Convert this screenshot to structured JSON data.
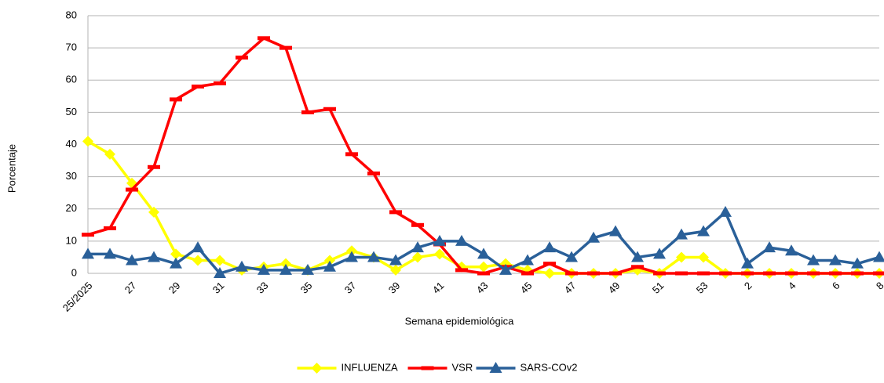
{
  "chart_data": {
    "type": "line",
    "x_label": "Semana epidemiológica",
    "y_label": "Porcentaje",
    "categories": [
      "25/2025",
      null,
      "27",
      null,
      "29",
      null,
      "31",
      null,
      "33",
      null,
      "35",
      null,
      "37",
      null,
      "39",
      null,
      "41",
      null,
      "43",
      null,
      "45",
      null,
      "47",
      null,
      "49",
      null,
      "51",
      null,
      "53",
      null,
      "2",
      null,
      "4",
      null,
      "6",
      null,
      "8"
    ],
    "series": [
      {
        "name": "INFLUENZA",
        "color": "#ffff00",
        "marker": "diamond",
        "values": [
          41,
          37,
          28,
          19,
          6,
          4,
          4,
          1,
          2,
          3,
          1,
          4,
          7,
          5,
          1,
          5,
          6,
          2,
          2,
          3,
          1,
          0,
          0,
          0,
          0,
          1,
          0,
          5,
          5,
          0,
          0,
          0,
          0,
          0,
          0,
          0,
          0
        ]
      },
      {
        "name": "VSR",
        "color": "#ff0000",
        "marker": "dash",
        "values": [
          12,
          14,
          26,
          33,
          54,
          58,
          59,
          67,
          73,
          70,
          50,
          51,
          37,
          31,
          19,
          15,
          9,
          1,
          0,
          2,
          0,
          3,
          0,
          0,
          0,
          2,
          0,
          0,
          0,
          0,
          0,
          0,
          0,
          0,
          0,
          0,
          0
        ]
      },
      {
        "name": "SARS-COv2",
        "color": "#2a6099",
        "marker": "triangle",
        "values": [
          6,
          6,
          4,
          5,
          3,
          8,
          0,
          2,
          1,
          1,
          1,
          2,
          5,
          5,
          4,
          8,
          10,
          10,
          6,
          1,
          4,
          8,
          5,
          11,
          13,
          5,
          6,
          12,
          13,
          19,
          3,
          8,
          7,
          4,
          4,
          3,
          5
        ]
      }
    ],
    "ylim": [
      0,
      80
    ],
    "yticks": [
      0,
      10,
      20,
      30,
      40,
      50,
      60,
      70,
      80
    ],
    "grid": true,
    "legend": "bottom"
  }
}
